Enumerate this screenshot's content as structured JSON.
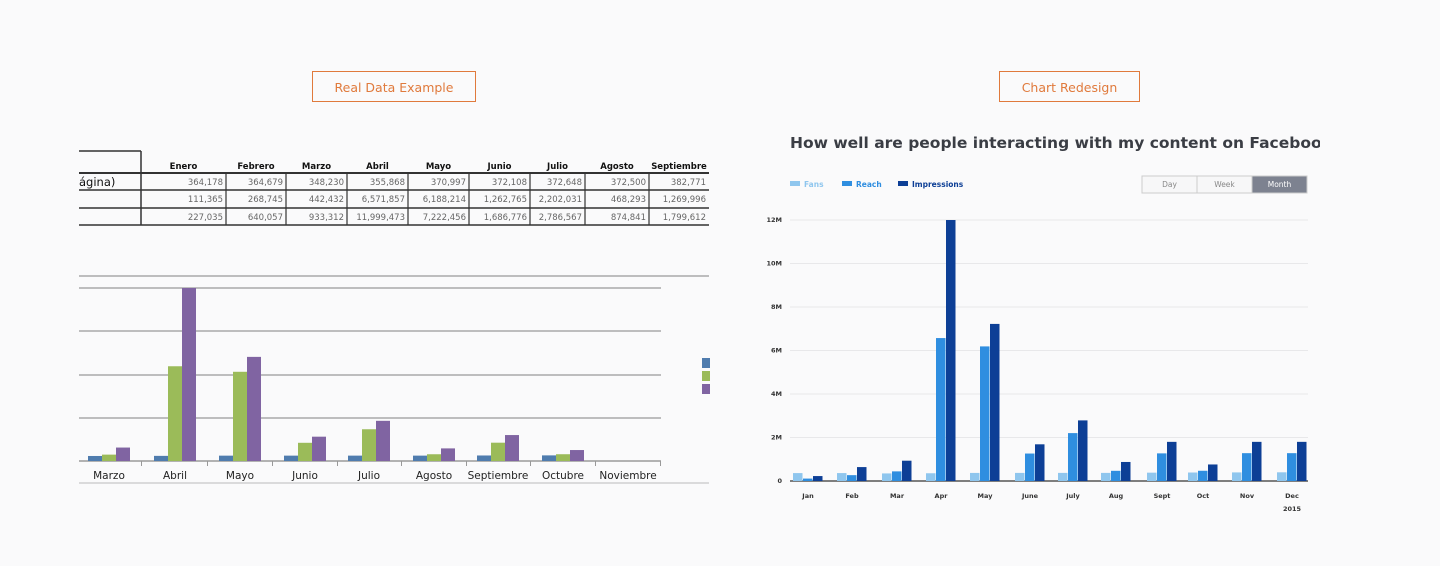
{
  "tags": {
    "left": "Real Data Example",
    "right": "Chart Redesign"
  },
  "left_table": {
    "headers": [
      "Enero",
      "Febrero",
      "Marzo",
      "Abril",
      "Mayo",
      "Junio",
      "Julio",
      "Agosto",
      "Septiembre"
    ],
    "row_labels": [
      "ágina)",
      "",
      ""
    ],
    "rows": [
      [
        "364,178",
        "364,679",
        "348,230",
        "355,868",
        "370,997",
        "372,108",
        "372,648",
        "372,500",
        "382,771"
      ],
      [
        "111,365",
        "268,745",
        "442,432",
        "6,571,857",
        "6,188,214",
        "1,262,765",
        "2,202,031",
        "468,293",
        "1,269,996"
      ],
      [
        "227,035",
        "640,057",
        "933,312",
        "11,999,473",
        "7,222,456",
        "1,686,776",
        "2,786,567",
        "874,841",
        "1,799,612"
      ]
    ]
  },
  "colors": {
    "left_series": [
      "#4f7cae",
      "#9bbb59",
      "#8064a2"
    ],
    "right_series": [
      "#8fc6ee",
      "#2f8ee0",
      "#0d3f96"
    ],
    "tag": "#e07a3c"
  },
  "right_header": {
    "title": "How well are people interacting with my content on Facebook?",
    "legend": [
      "Fans",
      "Reach",
      "Impressions"
    ],
    "segments": [
      "Day",
      "Week",
      "Month"
    ],
    "active_segment": "Month",
    "year_label": "2015"
  },
  "chart_data": [
    {
      "type": "bar",
      "title": "",
      "xlabel": "",
      "ylabel": "",
      "categories": [
        "Marzo",
        "Abril",
        "Mayo",
        "Junio",
        "Julio",
        "Agosto",
        "Septiembre",
        "Octubre",
        "Noviembre"
      ],
      "series": [
        {
          "values": [
            348230,
            355868,
            370997,
            372108,
            372648,
            372500,
            382771,
            390000,
            null
          ]
        },
        {
          "values": [
            442432,
            6571857,
            6188214,
            1262765,
            2202031,
            468293,
            1269996,
            470000,
            null
          ]
        },
        {
          "values": [
            933312,
            11999473,
            7222456,
            1686776,
            2786567,
            874841,
            1799612,
            760000,
            null
          ]
        }
      ],
      "ylim": [
        0,
        12000000
      ],
      "grid": true,
      "legend": "right"
    },
    {
      "type": "bar",
      "title": "How well are people interacting with my content on Facebook?",
      "xlabel": "",
      "ylabel": "",
      "categories": [
        "Jan",
        "Feb",
        "Mar",
        "Apr",
        "May",
        "June",
        "July",
        "Aug",
        "Sept",
        "Oct",
        "Nov",
        "Dec"
      ],
      "series": [
        {
          "name": "Fans",
          "values": [
            364178,
            364679,
            348230,
            355868,
            370997,
            372108,
            372648,
            372500,
            382771,
            390000,
            395000,
            400000
          ]
        },
        {
          "name": "Reach",
          "values": [
            111365,
            268745,
            442432,
            6571857,
            6188214,
            1262765,
            2202031,
            468293,
            1269996,
            470000,
            1280000,
            1280000
          ]
        },
        {
          "name": "Impressions",
          "values": [
            227035,
            640057,
            933312,
            11999473,
            7222456,
            1686776,
            2786567,
            874841,
            1799612,
            760000,
            1800000,
            1800000
          ]
        }
      ],
      "yticks": [
        "0",
        "2M",
        "4M",
        "6M",
        "8M",
        "10M",
        "12M"
      ],
      "ylim": [
        0,
        12000000
      ],
      "grid": true,
      "legend": "top-left"
    }
  ]
}
